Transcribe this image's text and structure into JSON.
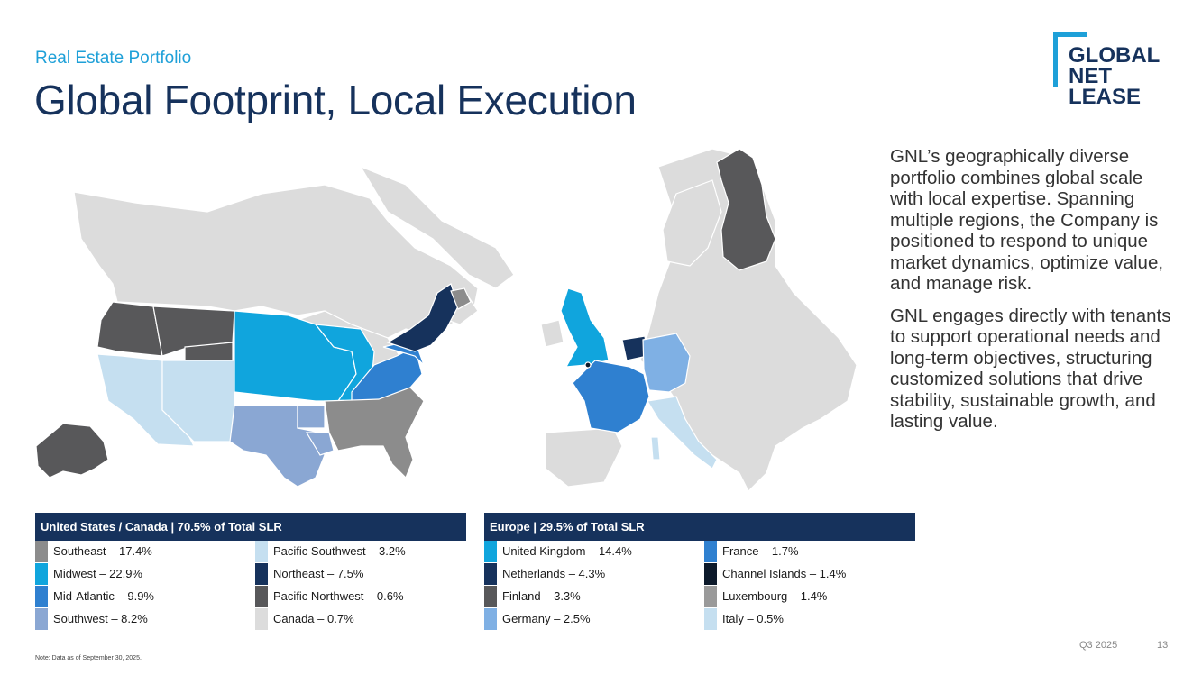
{
  "header": {
    "subtitle": "Real Estate Portfolio",
    "title": "Global Footprint, Local Execution"
  },
  "logo": {
    "line1": "GLOBAL",
    "line2": "NET",
    "line3": "LEASE"
  },
  "description": {
    "p1": "GNL’s geographically diverse portfolio combines global scale with local expertise. Spanning multiple regions, the Company is positioned to respond to unique market dynamics, optimize value, and manage risk.",
    "p2": "GNL engages directly with tenants to support operational needs and long-term objectives, structuring customized solutions that drive stability, sustainable growth, and lasting value."
  },
  "legend_us": {
    "header": "United States / Canada | 70.5% of Total SLR",
    "items": [
      {
        "label": "Southeast – 17.4%",
        "color": "#8c8c8c"
      },
      {
        "label": "Midwest – 22.9%",
        "color": "#10a5dd"
      },
      {
        "label": "Mid-Atlantic – 9.9%",
        "color": "#2f80d0"
      },
      {
        "label": "Southwest – 8.2%",
        "color": "#8aa7d3"
      },
      {
        "label": "Pacific Southwest – 3.2%",
        "color": "#c5dff0"
      },
      {
        "label": "Northeast – 7.5%",
        "color": "#16325c"
      },
      {
        "label": "Pacific Northwest – 0.6%",
        "color": "#58585a"
      },
      {
        "label": "Canada – 0.7%",
        "color": "#dcdcdc"
      }
    ]
  },
  "legend_eu": {
    "header": "Europe | 29.5% of Total SLR",
    "items": [
      {
        "label": "United Kingdom – 14.4%",
        "color": "#10a5dd"
      },
      {
        "label": "Netherlands – 4.3%",
        "color": "#16325c"
      },
      {
        "label": "Finland – 3.3%",
        "color": "#58585a"
      },
      {
        "label": "Germany – 2.5%",
        "color": "#7fb0e4"
      },
      {
        "label": "France – 1.7%",
        "color": "#2f80d0"
      },
      {
        "label": "Channel Islands – 1.4%",
        "color": "#0d1a2b"
      },
      {
        "label": "Luxembourg – 1.4%",
        "color": "#9a9a9a"
      },
      {
        "label": "Italy – 0.5%",
        "color": "#c5dff0"
      }
    ]
  },
  "footer": {
    "note": "Note: Data as of September 30, 2025.",
    "quarter": "Q3 2025",
    "page": "13"
  }
}
